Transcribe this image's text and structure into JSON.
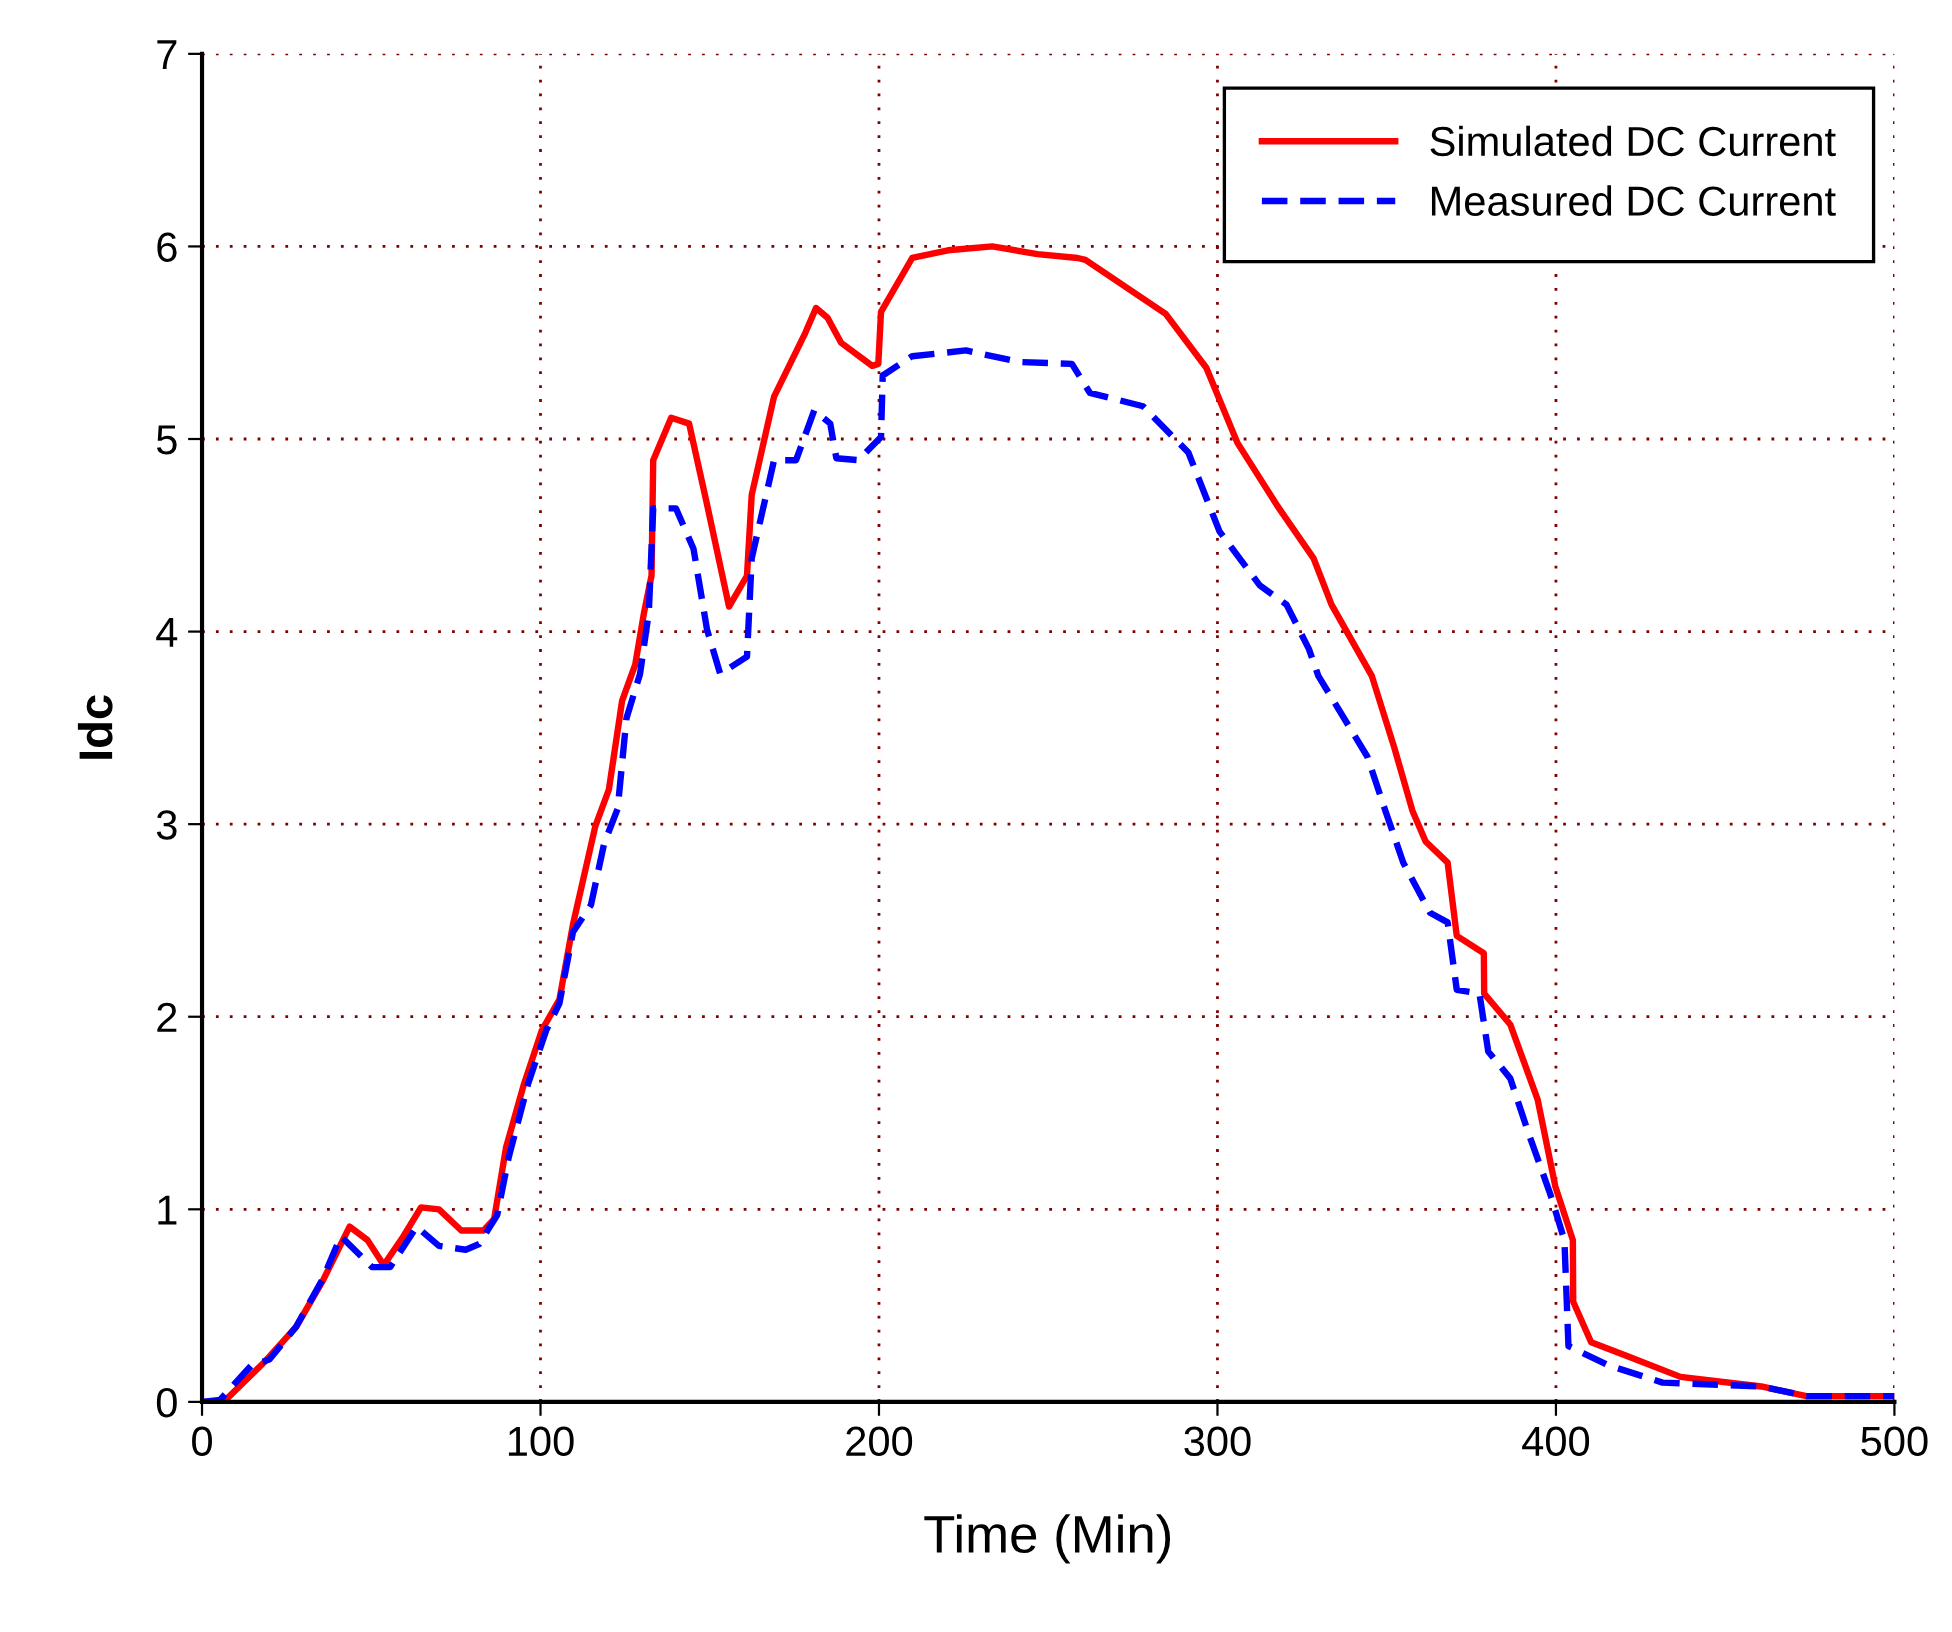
{
  "chart_data": {
    "type": "line",
    "xlabel": "Time (Min)",
    "ylabel": "Idc",
    "xlim": [
      0,
      500
    ],
    "ylim": [
      0,
      7
    ],
    "xticks": [
      0,
      100,
      200,
      300,
      400,
      500
    ],
    "yticks": [
      0,
      1,
      2,
      3,
      4,
      5,
      6,
      7
    ],
    "grid": true,
    "legend": "top right",
    "marker": "none",
    "series": [
      {
        "name": "Simulated DC Current",
        "color": "#ff0000",
        "line_style": "solid",
        "x": [
          0,
          6.4,
          18.6,
          27.8,
          35.7,
          43.6,
          48.9,
          53.7,
          59.5,
          64.7,
          70,
          76.6,
          83.2,
          86.3,
          89.8,
          95.1,
          100.4,
          105.6,
          109.6,
          116.2,
          120.2,
          124.1,
          128,
          130.6,
          132.8,
          133.3,
          138.6,
          143.9,
          149.2,
          155.7,
          161,
          162.4,
          169,
          178.2,
          181.4,
          184.8,
          188.8,
          198,
          199.8,
          200.6,
          209.8,
          220.4,
          233.5,
          246.8,
          258.7,
          261,
          284.7,
          296.7,
          305.9,
          317.8,
          328.4,
          333.7,
          345.6,
          352.2,
          357.6,
          361.5,
          368,
          370.7,
          378.7,
          378.8,
          386.5,
          394.6,
          399.8,
          405,
          405.1,
          410.4,
          420.8,
          436.8,
          460.7,
          474,
          500
        ],
        "values": [
          0,
          0,
          0.21,
          0.39,
          0.63,
          0.91,
          0.84,
          0.71,
          0.86,
          1.01,
          1.0,
          0.89,
          0.89,
          0.95,
          1.32,
          1.65,
          1.93,
          2.09,
          2.48,
          2.99,
          3.18,
          3.64,
          3.83,
          4.1,
          4.29,
          4.89,
          5.11,
          5.08,
          4.66,
          4.13,
          4.29,
          4.71,
          5.22,
          5.55,
          5.68,
          5.63,
          5.5,
          5.38,
          5.39,
          5.66,
          5.94,
          5.98,
          6.0,
          5.96,
          5.94,
          5.93,
          5.65,
          5.37,
          4.98,
          4.65,
          4.38,
          4.14,
          3.77,
          3.4,
          3.07,
          2.91,
          2.8,
          2.42,
          2.33,
          2.12,
          1.96,
          1.57,
          1.12,
          0.84,
          0.52,
          0.31,
          0.24,
          0.13,
          0.08,
          0.03,
          0.03
        ]
      },
      {
        "name": "Measured DC Current",
        "color": "#0000ff",
        "line_style": "dashed",
        "x": [
          0,
          5.3,
          14.6,
          19.9,
          27.8,
          35.7,
          41,
          50.2,
          55.6,
          63.4,
          70,
          77.9,
          81.9,
          87.2,
          90.6,
          96.3,
          101.7,
          105.6,
          109.6,
          114.9,
          118.8,
          122.8,
          125.4,
          129.4,
          132,
          133.3,
          140,
          145.2,
          149.2,
          153.1,
          161,
          162.4,
          169,
          175.5,
          180.9,
          185.6,
          187.4,
          193.9,
          200.6,
          201.1,
          209.8,
          225.7,
          241.5,
          257,
          262.3,
          278,
          291.4,
          300.6,
          312.5,
          320.4,
          327,
          329.8,
          344.3,
          349.6,
          354.9,
          362.8,
          368,
          370.7,
          377.4,
          380,
          386.5,
          391.8,
          398.3,
          402.5,
          403.7,
          415.5,
          431.5,
          460.7,
          474,
          500
        ],
        "values": [
          0,
          0.01,
          0.19,
          0.22,
          0.39,
          0.64,
          0.86,
          0.7,
          0.7,
          0.91,
          0.81,
          0.79,
          0.82,
          0.97,
          1.27,
          1.65,
          1.93,
          2.07,
          2.44,
          2.58,
          2.9,
          3.08,
          3.55,
          3.78,
          4.1,
          4.64,
          4.64,
          4.43,
          4.01,
          3.78,
          3.87,
          4.38,
          4.89,
          4.89,
          5.15,
          5.08,
          4.9,
          4.89,
          5.01,
          5.33,
          5.43,
          5.46,
          5.4,
          5.39,
          5.24,
          5.17,
          4.93,
          4.52,
          4.24,
          4.14,
          3.91,
          3.77,
          3.35,
          3.07,
          2.8,
          2.54,
          2.49,
          2.14,
          2.12,
          1.82,
          1.68,
          1.4,
          1.08,
          0.84,
          0.29,
          0.19,
          0.1,
          0.08,
          0.03,
          0.03
        ]
      }
    ]
  }
}
